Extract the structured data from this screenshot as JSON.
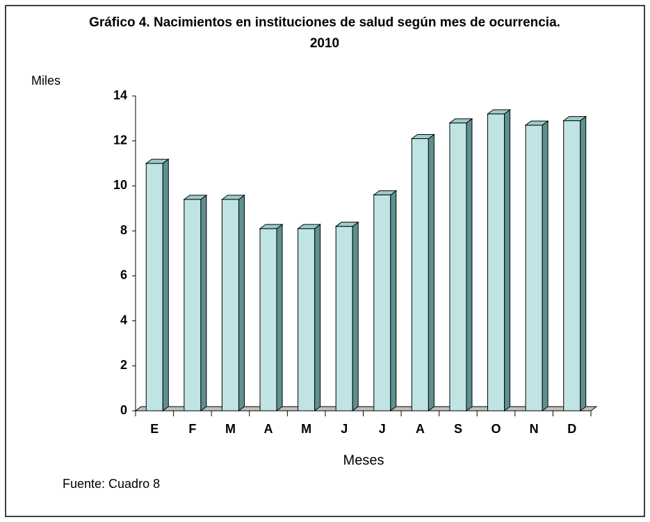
{
  "chart_data": {
    "type": "bar3d",
    "title": "Gráfico 4. Nacimientos en instituciones de salud según mes de ocurrencia. 2010",
    "y_label": "Miles",
    "x_label": "Meses",
    "annotation": "Fuente: Cuadro 8",
    "categories": [
      "E",
      "F",
      "M",
      "A",
      "M",
      "J",
      "J",
      "A",
      "S",
      "O",
      "N",
      "D"
    ],
    "values": [
      11.0,
      9.4,
      9.4,
      8.1,
      8.1,
      8.2,
      9.6,
      12.1,
      12.8,
      13.2,
      12.7,
      12.9
    ],
    "color": "#c0e4e4",
    "ylim": [
      0,
      14
    ],
    "yticks": [
      0,
      2,
      4,
      6,
      8,
      10,
      12,
      14
    ],
    "grid": false
  }
}
